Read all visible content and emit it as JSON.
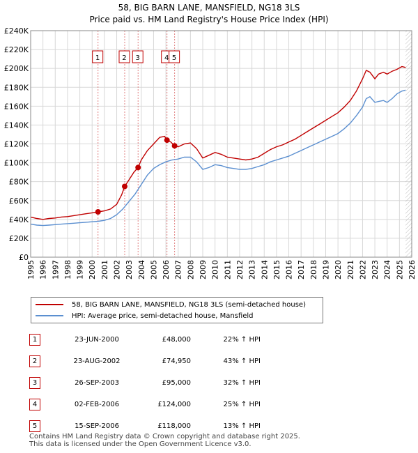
{
  "title_line1": "58, BIG BARN LANE, MANSFIELD, NG18 3LS",
  "title_line2": "Price paid vs. HM Land Registry's House Price Index (HPI)",
  "colors": {
    "property": "#c00000",
    "hpi": "#5b8fd0",
    "grid": "#d8d8d8",
    "marker_dash": "#e08080"
  },
  "chart_data": {
    "type": "line",
    "title": "58, BIG BARN LANE, MANSFIELD, NG18 3LS — Price paid vs. HM Land Registry's House Price Index (HPI)",
    "xlim": [
      1995,
      2026
    ],
    "ylim": [
      0,
      240000
    ],
    "x_ticks": [
      "1995",
      "1996",
      "1997",
      "1998",
      "1999",
      "2000",
      "2001",
      "2002",
      "2003",
      "2004",
      "2005",
      "2006",
      "2007",
      "2008",
      "2009",
      "2010",
      "2011",
      "2012",
      "2013",
      "2014",
      "2015",
      "2016",
      "2017",
      "2018",
      "2019",
      "2020",
      "2021",
      "2022",
      "2023",
      "2024",
      "2025",
      "2026"
    ],
    "y_ticks": [
      {
        "value": 0,
        "label": "£0"
      },
      {
        "value": 20000,
        "label": "£20K"
      },
      {
        "value": 40000,
        "label": "£40K"
      },
      {
        "value": 60000,
        "label": "£60K"
      },
      {
        "value": 80000,
        "label": "£80K"
      },
      {
        "value": 100000,
        "label": "£100K"
      },
      {
        "value": 120000,
        "label": "£120K"
      },
      {
        "value": 140000,
        "label": "£140K"
      },
      {
        "value": 160000,
        "label": "£160K"
      },
      {
        "value": 180000,
        "label": "£180K"
      },
      {
        "value": 200000,
        "label": "£200K"
      },
      {
        "value": 220000,
        "label": "£220K"
      },
      {
        "value": 240000,
        "label": "£240K"
      }
    ],
    "grid": true,
    "series": [
      {
        "name": "58, BIG BARN LANE, MANSFIELD, NG18 3LS (semi-detached house)",
        "points": [
          [
            1995.0,
            42500
          ],
          [
            1995.5,
            41000
          ],
          [
            1996.0,
            40000
          ],
          [
            1996.5,
            41000
          ],
          [
            1997.0,
            41500
          ],
          [
            1997.5,
            42500
          ],
          [
            1998.0,
            43000
          ],
          [
            1998.5,
            44000
          ],
          [
            1999.0,
            45000
          ],
          [
            1999.5,
            46000
          ],
          [
            2000.0,
            47000
          ],
          [
            2000.48,
            48000
          ],
          [
            2001.0,
            49000
          ],
          [
            2001.5,
            51000
          ],
          [
            2002.0,
            56000
          ],
          [
            2002.4,
            66000
          ],
          [
            2002.65,
            74950
          ],
          [
            2003.0,
            82000
          ],
          [
            2003.4,
            90000
          ],
          [
            2003.74,
            95000
          ],
          [
            2004.0,
            103000
          ],
          [
            2004.5,
            113000
          ],
          [
            2005.0,
            120000
          ],
          [
            2005.5,
            127000
          ],
          [
            2005.9,
            128000
          ],
          [
            2006.09,
            124000
          ],
          [
            2006.4,
            122000
          ],
          [
            2006.71,
            118000
          ],
          [
            2007.0,
            117000
          ],
          [
            2007.5,
            120000
          ],
          [
            2008.0,
            121000
          ],
          [
            2008.5,
            115000
          ],
          [
            2009.0,
            105000
          ],
          [
            2009.5,
            108000
          ],
          [
            2010.0,
            111000
          ],
          [
            2010.5,
            109000
          ],
          [
            2011.0,
            106000
          ],
          [
            2011.5,
            105000
          ],
          [
            2012.0,
            104000
          ],
          [
            2012.5,
            103000
          ],
          [
            2013.0,
            104000
          ],
          [
            2013.5,
            106000
          ],
          [
            2014.0,
            110000
          ],
          [
            2014.5,
            114000
          ],
          [
            2015.0,
            117000
          ],
          [
            2015.5,
            119000
          ],
          [
            2016.0,
            122000
          ],
          [
            2016.5,
            125000
          ],
          [
            2017.0,
            129000
          ],
          [
            2017.5,
            133000
          ],
          [
            2018.0,
            137000
          ],
          [
            2018.5,
            141000
          ],
          [
            2019.0,
            145000
          ],
          [
            2019.5,
            149000
          ],
          [
            2020.0,
            153000
          ],
          [
            2020.5,
            159000
          ],
          [
            2021.0,
            166000
          ],
          [
            2021.5,
            176000
          ],
          [
            2022.0,
            189000
          ],
          [
            2022.3,
            198000
          ],
          [
            2022.6,
            196000
          ],
          [
            2023.0,
            189000
          ],
          [
            2023.3,
            194000
          ],
          [
            2023.7,
            196000
          ],
          [
            2024.0,
            194000
          ],
          [
            2024.4,
            197000
          ],
          [
            2024.8,
            199000
          ],
          [
            2025.2,
            202000
          ],
          [
            2025.5,
            201000
          ]
        ]
      },
      {
        "name": "HPI: Average price, semi-detached house, Mansfield",
        "points": [
          [
            1995.0,
            35000
          ],
          [
            1995.5,
            34000
          ],
          [
            1996.0,
            33500
          ],
          [
            1996.5,
            34000
          ],
          [
            1997.0,
            34500
          ],
          [
            1997.5,
            35000
          ],
          [
            1998.0,
            35500
          ],
          [
            1998.5,
            36000
          ],
          [
            1999.0,
            36500
          ],
          [
            1999.5,
            37000
          ],
          [
            2000.0,
            37500
          ],
          [
            2000.5,
            38000
          ],
          [
            2001.0,
            39000
          ],
          [
            2001.5,
            41000
          ],
          [
            2002.0,
            45000
          ],
          [
            2002.5,
            51000
          ],
          [
            2003.0,
            59000
          ],
          [
            2003.5,
            67000
          ],
          [
            2004.0,
            77000
          ],
          [
            2004.5,
            87000
          ],
          [
            2005.0,
            94000
          ],
          [
            2005.5,
            98000
          ],
          [
            2006.0,
            101000
          ],
          [
            2006.5,
            103000
          ],
          [
            2007.0,
            104000
          ],
          [
            2007.5,
            106000
          ],
          [
            2008.0,
            106000
          ],
          [
            2008.5,
            101000
          ],
          [
            2009.0,
            93000
          ],
          [
            2009.5,
            95000
          ],
          [
            2010.0,
            98000
          ],
          [
            2010.5,
            97000
          ],
          [
            2011.0,
            95000
          ],
          [
            2011.5,
            94000
          ],
          [
            2012.0,
            93000
          ],
          [
            2012.5,
            93000
          ],
          [
            2013.0,
            94000
          ],
          [
            2013.5,
            96000
          ],
          [
            2014.0,
            98000
          ],
          [
            2014.5,
            101000
          ],
          [
            2015.0,
            103000
          ],
          [
            2015.5,
            105000
          ],
          [
            2016.0,
            107000
          ],
          [
            2016.5,
            110000
          ],
          [
            2017.0,
            113000
          ],
          [
            2017.5,
            116000
          ],
          [
            2018.0,
            119000
          ],
          [
            2018.5,
            122000
          ],
          [
            2019.0,
            125000
          ],
          [
            2019.5,
            128000
          ],
          [
            2020.0,
            131000
          ],
          [
            2020.5,
            136000
          ],
          [
            2021.0,
            142000
          ],
          [
            2021.5,
            150000
          ],
          [
            2022.0,
            159000
          ],
          [
            2022.3,
            168000
          ],
          [
            2022.6,
            170000
          ],
          [
            2023.0,
            164000
          ],
          [
            2023.3,
            165000
          ],
          [
            2023.7,
            166000
          ],
          [
            2024.0,
            164000
          ],
          [
            2024.4,
            168000
          ],
          [
            2024.8,
            173000
          ],
          [
            2025.2,
            176000
          ],
          [
            2025.5,
            177000
          ]
        ]
      }
    ],
    "sales": [
      {
        "id": "1",
        "x": 2000.48,
        "y": 48000
      },
      {
        "id": "2",
        "x": 2002.65,
        "y": 74950
      },
      {
        "id": "3",
        "x": 2003.74,
        "y": 95000
      },
      {
        "id": "4",
        "x": 2006.09,
        "y": 124000
      },
      {
        "id": "5",
        "x": 2006.71,
        "y": 118000
      }
    ],
    "latest_data_x": 2025.5
  },
  "legend": {
    "property_label": "58, BIG BARN LANE, MANSFIELD, NG18 3LS (semi-detached house)",
    "hpi_label": "HPI: Average price, semi-detached house, Mansfield"
  },
  "table": [
    {
      "num": "1",
      "date": "23-JUN-2000",
      "price": "£48,000",
      "hpi": "22% ↑ HPI"
    },
    {
      "num": "2",
      "date": "23-AUG-2002",
      "price": "£74,950",
      "hpi": "43% ↑ HPI"
    },
    {
      "num": "3",
      "date": "26-SEP-2003",
      "price": "£95,000",
      "hpi": "32% ↑ HPI"
    },
    {
      "num": "4",
      "date": "02-FEB-2006",
      "price": "£124,000",
      "hpi": "25% ↑ HPI"
    },
    {
      "num": "5",
      "date": "15-SEP-2006",
      "price": "£118,000",
      "hpi": "13% ↑ HPI"
    }
  ],
  "footer_line1": "Contains HM Land Registry data © Crown copyright and database right 2025.",
  "footer_line2": "This data is licensed under the Open Government Licence v3.0."
}
